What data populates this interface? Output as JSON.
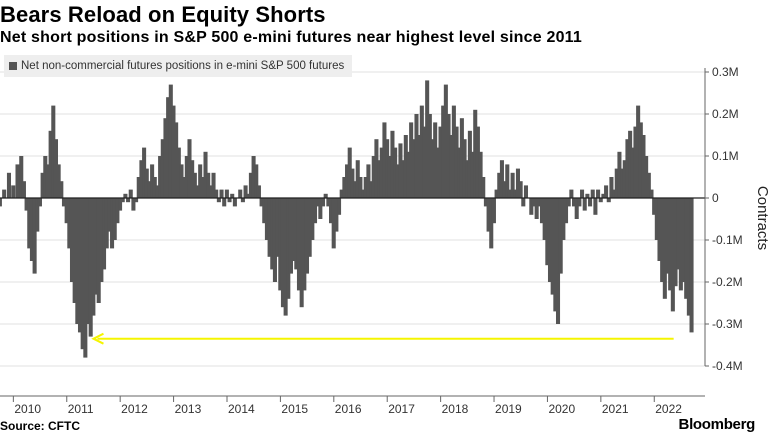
{
  "header": {
    "title": "Bears Reload on Equity Shorts",
    "subtitle": "Net short positions in S&P 500 e-mini futures near highest level since 2011"
  },
  "footer": {
    "source": "Source: CFTC",
    "brand": "Bloomberg"
  },
  "colors": {
    "bar": "#555555",
    "grid": "#e0e0e0",
    "zero_line": "#222222",
    "arrow": "#f5f500"
  },
  "chart_data": {
    "type": "bar",
    "title": "Bears Reload on Equity Shorts",
    "subtitle": "Net short positions in S&P 500 e-mini futures near highest level since 2011",
    "legend": [
      "Net non-commercial futures positions in e-mini S&P 500 futures"
    ],
    "ylabel": "Contracts",
    "ylim": [
      -0.4,
      0.3
    ],
    "xlim": [
      2009.75,
      2022.95
    ],
    "y_ticks": [
      {
        "value": 0.3,
        "label": "0.3M"
      },
      {
        "value": 0.2,
        "label": "0.2M"
      },
      {
        "value": 0.1,
        "label": "0.1M"
      },
      {
        "value": 0.0,
        "label": "0"
      },
      {
        "value": -0.1,
        "label": "-0.1M"
      },
      {
        "value": -0.2,
        "label": "-0.2M"
      },
      {
        "value": -0.3,
        "label": "-0.3M"
      },
      {
        "value": -0.4,
        "label": "-0.4M"
      }
    ],
    "x_ticks": [
      "2010",
      "2011",
      "2012",
      "2013",
      "2014",
      "2015",
      "2016",
      "2017",
      "2018",
      "2019",
      "2020",
      "2021",
      "2022"
    ],
    "grid": true,
    "legend_position": "top-left",
    "annotation": {
      "type": "arrow",
      "from_x": 2022.7,
      "to_x": 2011.5,
      "y": -0.335
    },
    "series": [
      {
        "name": "Net non-commercial futures positions in e-mini S&P 500 futures",
        "unit": "million contracts",
        "points": [
          [
            2009.75,
            -0.02
          ],
          [
            2009.83,
            0.02
          ],
          [
            2009.92,
            0.06
          ],
          [
            2010.0,
            0.03
          ],
          [
            2010.08,
            0.08
          ],
          [
            2010.15,
            0.1
          ],
          [
            2010.2,
            0.04
          ],
          [
            2010.25,
            -0.03
          ],
          [
            2010.3,
            -0.12
          ],
          [
            2010.35,
            -0.15
          ],
          [
            2010.4,
            -0.18
          ],
          [
            2010.45,
            -0.08
          ],
          [
            2010.5,
            -0.02
          ],
          [
            2010.55,
            0.06
          ],
          [
            2010.6,
            0.1
          ],
          [
            2010.65,
            0.08
          ],
          [
            2010.7,
            0.16
          ],
          [
            2010.75,
            0.22
          ],
          [
            2010.8,
            0.14
          ],
          [
            2010.85,
            0.08
          ],
          [
            2010.9,
            0.04
          ],
          [
            2010.95,
            -0.02
          ],
          [
            2011.0,
            -0.06
          ],
          [
            2011.05,
            -0.12
          ],
          [
            2011.1,
            -0.2
          ],
          [
            2011.15,
            -0.25
          ],
          [
            2011.2,
            -0.3
          ],
          [
            2011.25,
            -0.32
          ],
          [
            2011.3,
            -0.36
          ],
          [
            2011.35,
            -0.38
          ],
          [
            2011.4,
            -0.3
          ],
          [
            2011.45,
            -0.33
          ],
          [
            2011.5,
            -0.28
          ],
          [
            2011.55,
            -0.23
          ],
          [
            2011.6,
            -0.25
          ],
          [
            2011.65,
            -0.2
          ],
          [
            2011.7,
            -0.17
          ],
          [
            2011.75,
            -0.12
          ],
          [
            2011.8,
            -0.08
          ],
          [
            2011.85,
            -0.12
          ],
          [
            2011.9,
            -0.1
          ],
          [
            2011.95,
            -0.06
          ],
          [
            2012.0,
            -0.03
          ],
          [
            2012.05,
            -0.01
          ],
          [
            2012.1,
            0.01
          ],
          [
            2012.15,
            -0.01
          ],
          [
            2012.2,
            0.02
          ],
          [
            2012.25,
            -0.03
          ],
          [
            2012.3,
            -0.01
          ],
          [
            2012.35,
            0.05
          ],
          [
            2012.4,
            0.09
          ],
          [
            2012.45,
            0.12
          ],
          [
            2012.5,
            0.07
          ],
          [
            2012.55,
            0.04
          ],
          [
            2012.6,
            0.08
          ],
          [
            2012.65,
            0.05
          ],
          [
            2012.7,
            0.03
          ],
          [
            2012.75,
            0.1
          ],
          [
            2012.8,
            0.14
          ],
          [
            2012.85,
            0.19
          ],
          [
            2012.9,
            0.24
          ],
          [
            2012.95,
            0.27
          ],
          [
            2013.0,
            0.22
          ],
          [
            2013.05,
            0.18
          ],
          [
            2013.1,
            0.12
          ],
          [
            2013.15,
            0.08
          ],
          [
            2013.2,
            0.05
          ],
          [
            2013.25,
            0.1
          ],
          [
            2013.3,
            0.14
          ],
          [
            2013.35,
            0.09
          ],
          [
            2013.4,
            0.06
          ],
          [
            2013.45,
            0.03
          ],
          [
            2013.5,
            0.08
          ],
          [
            2013.55,
            0.05
          ],
          [
            2013.6,
            0.11
          ],
          [
            2013.65,
            0.06
          ],
          [
            2013.7,
            0.03
          ],
          [
            2013.75,
            0.06
          ],
          [
            2013.8,
            0.02
          ],
          [
            2013.85,
            -0.01
          ],
          [
            2013.9,
            0.02
          ],
          [
            2013.95,
            -0.02
          ],
          [
            2014.0,
            0.02
          ],
          [
            2014.05,
            -0.01
          ],
          [
            2014.1,
            0.01
          ],
          [
            2014.15,
            -0.02
          ],
          [
            2014.2,
            0.0
          ],
          [
            2014.25,
            0.02
          ],
          [
            2014.3,
            -0.01
          ],
          [
            2014.35,
            0.03
          ],
          [
            2014.4,
            0.01
          ],
          [
            2014.45,
            0.06
          ],
          [
            2014.5,
            0.1
          ],
          [
            2014.55,
            0.08
          ],
          [
            2014.6,
            0.03
          ],
          [
            2014.65,
            -0.02
          ],
          [
            2014.7,
            -0.06
          ],
          [
            2014.75,
            -0.1
          ],
          [
            2014.8,
            -0.14
          ],
          [
            2014.85,
            -0.17
          ],
          [
            2014.9,
            -0.2
          ],
          [
            2014.95,
            -0.14
          ],
          [
            2015.0,
            -0.22
          ],
          [
            2015.05,
            -0.26
          ],
          [
            2015.1,
            -0.28
          ],
          [
            2015.15,
            -0.24
          ],
          [
            2015.2,
            -0.18
          ],
          [
            2015.25,
            -0.15
          ],
          [
            2015.3,
            -0.17
          ],
          [
            2015.35,
            -0.22
          ],
          [
            2015.4,
            -0.26
          ],
          [
            2015.45,
            -0.22
          ],
          [
            2015.5,
            -0.18
          ],
          [
            2015.55,
            -0.14
          ],
          [
            2015.6,
            -0.1
          ],
          [
            2015.65,
            -0.06
          ],
          [
            2015.7,
            -0.02
          ],
          [
            2015.75,
            -0.05
          ],
          [
            2015.8,
            -0.02
          ],
          [
            2015.85,
            0.01
          ],
          [
            2015.9,
            -0.02
          ],
          [
            2015.95,
            -0.06
          ],
          [
            2016.0,
            -0.12
          ],
          [
            2016.05,
            -0.08
          ],
          [
            2016.1,
            -0.04
          ],
          [
            2016.15,
            0.02
          ],
          [
            2016.2,
            0.05
          ],
          [
            2016.25,
            0.08
          ],
          [
            2016.3,
            0.12
          ],
          [
            2016.35,
            0.07
          ],
          [
            2016.4,
            0.04
          ],
          [
            2016.45,
            0.09
          ],
          [
            2016.5,
            0.05
          ],
          [
            2016.55,
            0.02
          ],
          [
            2016.6,
            0.05
          ],
          [
            2016.65,
            0.08
          ],
          [
            2016.7,
            0.04
          ],
          [
            2016.75,
            0.1
          ],
          [
            2016.8,
            0.14
          ],
          [
            2016.85,
            0.09
          ],
          [
            2016.9,
            0.12
          ],
          [
            2016.95,
            0.18
          ],
          [
            2017.0,
            0.14
          ],
          [
            2017.05,
            0.1
          ],
          [
            2017.1,
            0.16
          ],
          [
            2017.15,
            0.12
          ],
          [
            2017.2,
            0.08
          ],
          [
            2017.25,
            0.13
          ],
          [
            2017.3,
            0.09
          ],
          [
            2017.35,
            0.15
          ],
          [
            2017.4,
            0.11
          ],
          [
            2017.45,
            0.18
          ],
          [
            2017.5,
            0.14
          ],
          [
            2017.55,
            0.2
          ],
          [
            2017.6,
            0.15
          ],
          [
            2017.65,
            0.22
          ],
          [
            2017.7,
            0.17
          ],
          [
            2017.75,
            0.28
          ],
          [
            2017.8,
            0.2
          ],
          [
            2017.85,
            0.14
          ],
          [
            2017.9,
            0.18
          ],
          [
            2017.95,
            0.12
          ],
          [
            2018.0,
            0.17
          ],
          [
            2018.05,
            0.22
          ],
          [
            2018.1,
            0.27
          ],
          [
            2018.15,
            0.2
          ],
          [
            2018.2,
            0.15
          ],
          [
            2018.25,
            0.22
          ],
          [
            2018.3,
            0.17
          ],
          [
            2018.35,
            0.12
          ],
          [
            2018.4,
            0.19
          ],
          [
            2018.45,
            0.14
          ],
          [
            2018.5,
            0.09
          ],
          [
            2018.55,
            0.16
          ],
          [
            2018.6,
            0.11
          ],
          [
            2018.65,
            0.21
          ],
          [
            2018.7,
            0.17
          ],
          [
            2018.75,
            0.11
          ],
          [
            2018.8,
            0.05
          ],
          [
            2018.85,
            -0.02
          ],
          [
            2018.9,
            -0.08
          ],
          [
            2018.95,
            -0.12
          ],
          [
            2019.0,
            -0.06
          ],
          [
            2019.05,
            0.02
          ],
          [
            2019.1,
            0.06
          ],
          [
            2019.15,
            0.09
          ],
          [
            2019.2,
            0.04
          ],
          [
            2019.25,
            0.08
          ],
          [
            2019.3,
            0.02
          ],
          [
            2019.35,
            0.06
          ],
          [
            2019.4,
            0.02
          ],
          [
            2019.45,
            0.07
          ],
          [
            2019.5,
            0.04
          ],
          [
            2019.55,
            -0.02
          ],
          [
            2019.6,
            0.03
          ],
          [
            2019.65,
            0.0
          ],
          [
            2019.7,
            -0.04
          ],
          [
            2019.75,
            -0.02
          ],
          [
            2019.8,
            -0.05
          ],
          [
            2019.85,
            -0.02
          ],
          [
            2019.9,
            -0.06
          ],
          [
            2019.95,
            -0.1
          ],
          [
            2020.0,
            -0.16
          ],
          [
            2020.05,
            -0.2
          ],
          [
            2020.1,
            -0.23
          ],
          [
            2020.15,
            -0.27
          ],
          [
            2020.2,
            -0.3
          ],
          [
            2020.25,
            -0.18
          ],
          [
            2020.3,
            -0.1
          ],
          [
            2020.35,
            -0.06
          ],
          [
            2020.4,
            -0.02
          ],
          [
            2020.45,
            0.02
          ],
          [
            2020.5,
            -0.02
          ],
          [
            2020.55,
            -0.05
          ],
          [
            2020.6,
            -0.02
          ],
          [
            2020.65,
            0.02
          ],
          [
            2020.7,
            -0.03
          ],
          [
            2020.75,
            0.01
          ],
          [
            2020.8,
            -0.02
          ],
          [
            2020.85,
            0.02
          ],
          [
            2020.9,
            -0.04
          ],
          [
            2020.95,
            0.02
          ],
          [
            2021.0,
            -0.01
          ],
          [
            2021.05,
            0.01
          ],
          [
            2021.1,
            0.03
          ],
          [
            2021.15,
            -0.01
          ],
          [
            2021.2,
            0.05
          ],
          [
            2021.25,
            0.02
          ],
          [
            2021.3,
            0.07
          ],
          [
            2021.35,
            0.11
          ],
          [
            2021.4,
            0.07
          ],
          [
            2021.45,
            0.09
          ],
          [
            2021.5,
            0.14
          ],
          [
            2021.55,
            0.16
          ],
          [
            2021.6,
            0.12
          ],
          [
            2021.65,
            0.17
          ],
          [
            2021.7,
            0.22
          ],
          [
            2021.75,
            0.18
          ],
          [
            2021.8,
            0.15
          ],
          [
            2021.85,
            0.1
          ],
          [
            2021.9,
            0.06
          ],
          [
            2021.95,
            0.02
          ],
          [
            2022.0,
            -0.04
          ],
          [
            2022.05,
            -0.1
          ],
          [
            2022.1,
            -0.15
          ],
          [
            2022.15,
            -0.2
          ],
          [
            2022.2,
            -0.24
          ],
          [
            2022.25,
            -0.18
          ],
          [
            2022.3,
            -0.22
          ],
          [
            2022.35,
            -0.27
          ],
          [
            2022.4,
            -0.21
          ],
          [
            2022.45,
            -0.17
          ],
          [
            2022.5,
            -0.22
          ],
          [
            2022.55,
            -0.2
          ],
          [
            2022.6,
            -0.24
          ],
          [
            2022.65,
            -0.28
          ],
          [
            2022.7,
            -0.32
          ]
        ]
      }
    ]
  }
}
